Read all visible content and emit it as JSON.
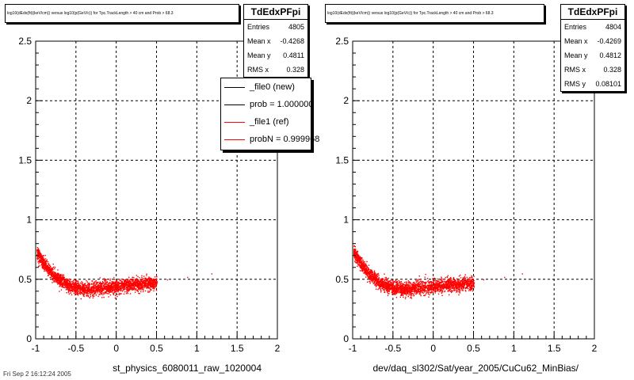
{
  "footer_text": "Fri Sep  2 16:12:24 2005",
  "colors": {
    "new": "#000000",
    "ref": "#ff0000",
    "points": "#ff0000"
  },
  "chart_data": [
    {
      "type": "scatter",
      "title": "log10(dEdx(fit)(keV/cm)) versus log10(p(GeV/c)) for Tpc.TrackLength > 40 cm and Prob > 68.3",
      "xlabel": "st_physics_6080011_raw_1020004",
      "ylabel": "",
      "xlim": [
        -1,
        2
      ],
      "ylim": [
        0,
        2.5
      ],
      "xticks": [
        "-1",
        "-0.5",
        "0",
        "0.5",
        "1",
        "1.5",
        "2"
      ],
      "yticks": [
        "0",
        "0.5",
        "1",
        "1.5",
        "2",
        "2.5"
      ],
      "grid": true,
      "stats": {
        "name": "TdEdxPFpi",
        "rows": [
          {
            "label": "Entries",
            "value": "4805"
          },
          {
            "label": "Mean x",
            "value": "-0.4268"
          },
          {
            "label": "Mean y",
            "value": "0.4811"
          },
          {
            "label": "RMS x",
            "value": "0.328"
          }
        ]
      },
      "legend": {
        "placement": "top-right",
        "entries": [
          {
            "label": "_file0 (new)",
            "color": "#000000"
          },
          {
            "label": "prob = 1.000000",
            "color": "#000000"
          },
          {
            "label": "_file1 (ref)",
            "color": "#ff0000"
          },
          {
            "label": "probN = 0.999968",
            "color": "#ff0000"
          }
        ]
      },
      "band": [
        {
          "x": -1.0,
          "y": 0.74
        },
        {
          "x": -0.9,
          "y": 0.63
        },
        {
          "x": -0.8,
          "y": 0.55
        },
        {
          "x": -0.7,
          "y": 0.49
        },
        {
          "x": -0.6,
          "y": 0.45
        },
        {
          "x": -0.5,
          "y": 0.43
        },
        {
          "x": -0.4,
          "y": 0.42
        },
        {
          "x": -0.3,
          "y": 0.42
        },
        {
          "x": -0.2,
          "y": 0.43
        },
        {
          "x": -0.1,
          "y": 0.44
        },
        {
          "x": 0.0,
          "y": 0.44
        },
        {
          "x": 0.1,
          "y": 0.45
        },
        {
          "x": 0.2,
          "y": 0.46
        },
        {
          "x": 0.3,
          "y": 0.46
        },
        {
          "x": 0.4,
          "y": 0.47
        },
        {
          "x": 0.5,
          "y": 0.47
        }
      ],
      "outliers": [
        {
          "x": 0.88,
          "y": 0.52
        },
        {
          "x": 1.18,
          "y": 0.55
        },
        {
          "x": 0.63,
          "y": 0.5
        }
      ]
    },
    {
      "type": "scatter",
      "title": "log10(dEdx(fit)(keV/cm)) versus log10(p(GeV/c)) for Tpc.TrackLength > 40 cm and Prob > 68.3",
      "xlabel": "dev/daq_sl302/Sat/year_2005/CuCu62_MinBias/",
      "ylabel": "",
      "xlim": [
        -1,
        2
      ],
      "ylim": [
        0,
        2.5
      ],
      "xticks": [
        "-1",
        "-0.5",
        "0",
        "0.5",
        "1",
        "1.5",
        "2"
      ],
      "yticks": [
        "0",
        "0.5",
        "1",
        "1.5",
        "2",
        "2.5"
      ],
      "grid": true,
      "stats": {
        "name": "TdEdxPFpi",
        "rows": [
          {
            "label": "Entries",
            "value": "4804"
          },
          {
            "label": "Mean x",
            "value": "-0.4269"
          },
          {
            "label": "Mean y",
            "value": "0.4812"
          },
          {
            "label": "RMS x",
            "value": "0.328"
          },
          {
            "label": "RMS y",
            "value": "0.08101"
          }
        ]
      },
      "band": [
        {
          "x": -1.0,
          "y": 0.74
        },
        {
          "x": -0.9,
          "y": 0.63
        },
        {
          "x": -0.8,
          "y": 0.55
        },
        {
          "x": -0.7,
          "y": 0.49
        },
        {
          "x": -0.6,
          "y": 0.45
        },
        {
          "x": -0.5,
          "y": 0.43
        },
        {
          "x": -0.4,
          "y": 0.42
        },
        {
          "x": -0.3,
          "y": 0.42
        },
        {
          "x": -0.2,
          "y": 0.43
        },
        {
          "x": -0.1,
          "y": 0.44
        },
        {
          "x": 0.0,
          "y": 0.44
        },
        {
          "x": 0.1,
          "y": 0.45
        },
        {
          "x": 0.2,
          "y": 0.46
        },
        {
          "x": 0.3,
          "y": 0.46
        },
        {
          "x": 0.4,
          "y": 0.47
        },
        {
          "x": 0.5,
          "y": 0.47
        }
      ],
      "outliers": [
        {
          "x": 0.88,
          "y": 0.52
        },
        {
          "x": 1.1,
          "y": 0.55
        },
        {
          "x": 0.62,
          "y": 0.5
        }
      ]
    }
  ]
}
